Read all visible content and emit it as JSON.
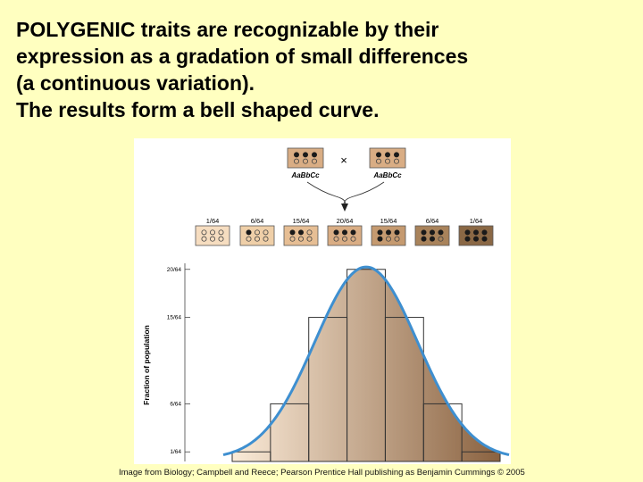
{
  "heading": {
    "line1": "POLYGENIC traits are recognizable by their",
    "line2": "expression as a gradation of small differences",
    "line3": "(a continuous variation).",
    "line4": "The results form a bell shaped curve."
  },
  "cross": {
    "symbol": "×",
    "parent_left": {
      "genotype": "AaBbCc",
      "dark_dots": 3
    },
    "parent_right": {
      "genotype": "AaBbCc",
      "dark_dots": 3
    }
  },
  "offspring": [
    {
      "num": "1",
      "den": "64",
      "dark_dots": 0,
      "color": "#F6DDC0"
    },
    {
      "num": "6",
      "den": "64",
      "dark_dots": 1,
      "color": "#EFCFA8"
    },
    {
      "num": "15",
      "den": "64",
      "dark_dots": 2,
      "color": "#E6BE94"
    },
    {
      "num": "20",
      "den": "64",
      "dark_dots": 3,
      "color": "#D9AD84"
    },
    {
      "num": "15",
      "den": "64",
      "dark_dots": 4,
      "color": "#C59A70"
    },
    {
      "num": "6",
      "den": "64",
      "dark_dots": 5,
      "color": "#A9835B"
    },
    {
      "num": "1",
      "den": "64",
      "dark_dots": 6,
      "color": "#8A6845"
    }
  ],
  "chart_data": {
    "type": "bar",
    "ylabel": "Fraction of population",
    "y_ticks": [
      {
        "num": "20",
        "den": "64",
        "value": 20
      },
      {
        "num": "15",
        "den": "64",
        "value": 15
      },
      {
        "num": "6",
        "den": "64",
        "value": 6
      },
      {
        "num": "1",
        "den": "64",
        "value": 1
      }
    ],
    "values": [
      1,
      6,
      15,
      20,
      15,
      6,
      1
    ],
    "ylim": [
      0,
      21
    ],
    "curve": "bell",
    "curve_color": "#3E8FD0",
    "gradient_light": "#FBEBD8",
    "gradient_dark": "#8A6240"
  },
  "credit": "Image from Biology; Campbell and Reece; Pearson Prentice Hall publishing as Benjamin Cummings © 2005",
  "colors": {
    "background": "#FFFFC0",
    "dot_dark": "#1A1A1A",
    "box_border": "#555555"
  }
}
